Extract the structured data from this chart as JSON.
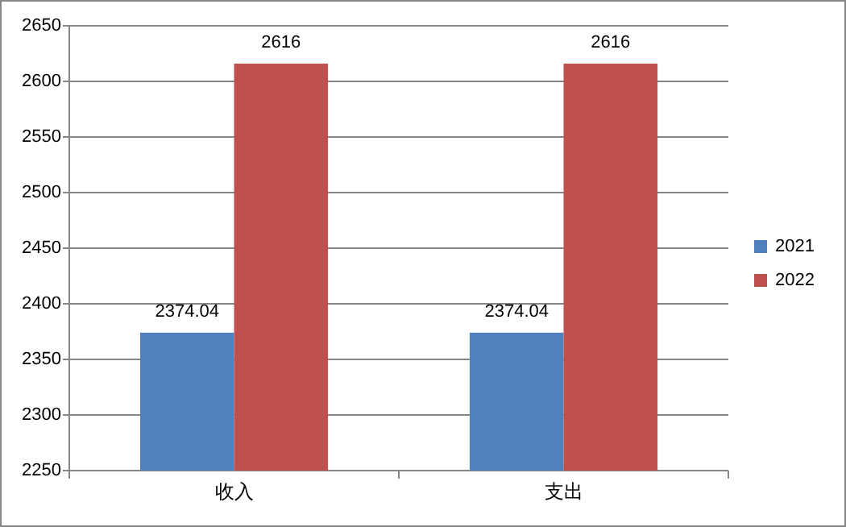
{
  "chart_data": {
    "type": "bar",
    "categories": [
      "收入",
      "支出"
    ],
    "series": [
      {
        "name": "2021",
        "color": "#4f81bd",
        "values": [
          2374.04,
          2374.04
        ]
      },
      {
        "name": "2022",
        "color": "#c0504d",
        "values": [
          2616,
          2616
        ]
      }
    ],
    "ylim": [
      2250,
      2650
    ],
    "yticks": [
      2250,
      2300,
      2350,
      2400,
      2450,
      2500,
      2550,
      2600,
      2650
    ],
    "grid": "y",
    "legend": "right",
    "data_labels": true
  }
}
